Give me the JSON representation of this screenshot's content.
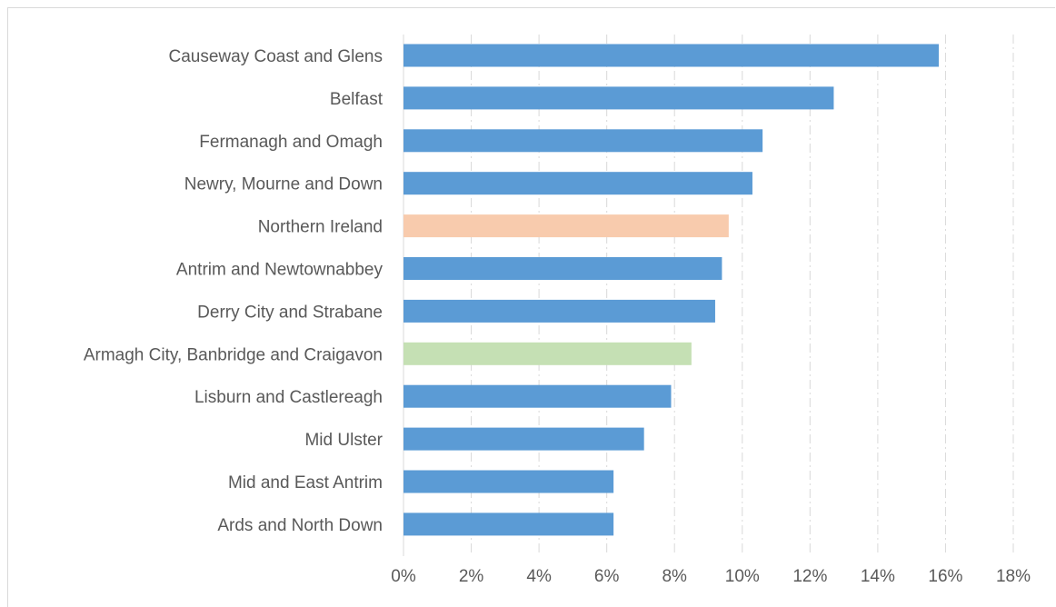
{
  "chart_data": {
    "type": "bar",
    "orientation": "horizontal",
    "categories": [
      "Causeway Coast and Glens",
      "Belfast",
      "Fermanagh and Omagh",
      "Newry, Mourne and Down",
      "Northern Ireland",
      "Antrim and Newtownabbey",
      "Derry City and Strabane",
      "Armagh City, Banbridge and Craigavon",
      "Lisburn and Castlereagh",
      "Mid Ulster",
      "Mid and East Antrim",
      "Ards and North Down"
    ],
    "values": [
      15.8,
      12.7,
      10.6,
      10.3,
      9.6,
      9.4,
      9.2,
      8.5,
      7.9,
      7.1,
      6.2,
      6.2
    ],
    "bar_colors": [
      "#5b9bd5",
      "#5b9bd5",
      "#5b9bd5",
      "#5b9bd5",
      "#f8cbad",
      "#5b9bd5",
      "#5b9bd5",
      "#c5e0b4",
      "#5b9bd5",
      "#5b9bd5",
      "#5b9bd5",
      "#5b9bd5"
    ],
    "x_ticks": [
      "0%",
      "2%",
      "4%",
      "6%",
      "8%",
      "10%",
      "12%",
      "14%",
      "16%",
      "18%"
    ],
    "xlim": [
      0,
      18
    ],
    "title": "",
    "xlabel": "",
    "ylabel": "",
    "grid": true,
    "legend": "none"
  }
}
